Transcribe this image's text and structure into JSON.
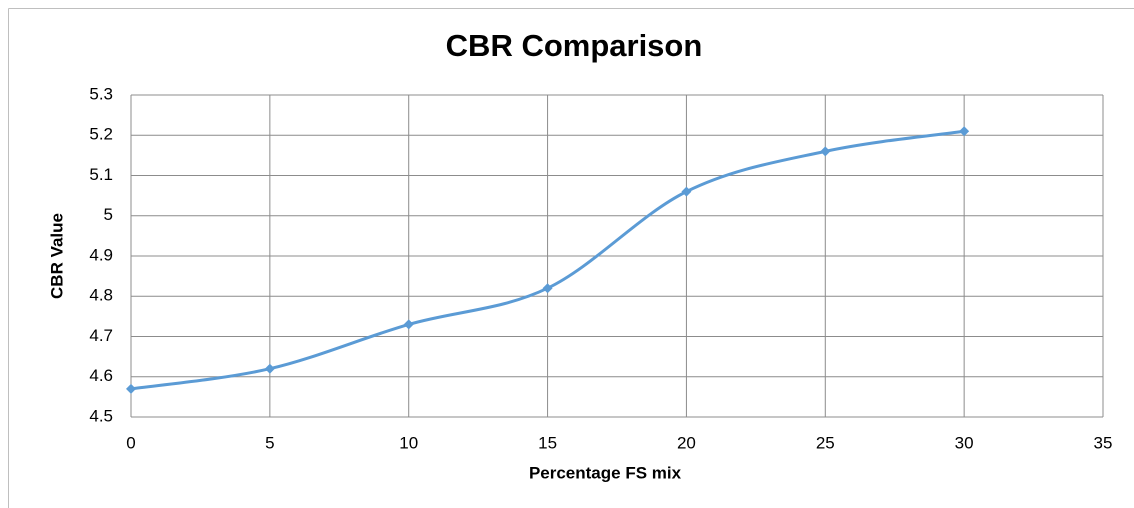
{
  "chart_data": {
    "type": "line",
    "title": "CBR Comparison",
    "x_label": "Percentage FS mix",
    "y_label": "CBR Value",
    "x": [
      0,
      5,
      10,
      15,
      20,
      25,
      30
    ],
    "values": [
      4.57,
      4.62,
      4.73,
      4.82,
      5.06,
      5.16,
      5.21
    ],
    "color": "#5b9bd5",
    "smooth": true,
    "markers": "diamond",
    "xlim": [
      0,
      35
    ],
    "xticks": [
      0,
      5,
      10,
      15,
      20,
      25,
      30,
      35
    ],
    "ylim": [
      4.5,
      5.3
    ],
    "yticks": [
      4.5,
      4.6,
      4.7,
      4.8,
      4.9,
      5,
      5.1,
      5.2,
      5.3
    ],
    "grid": true
  }
}
